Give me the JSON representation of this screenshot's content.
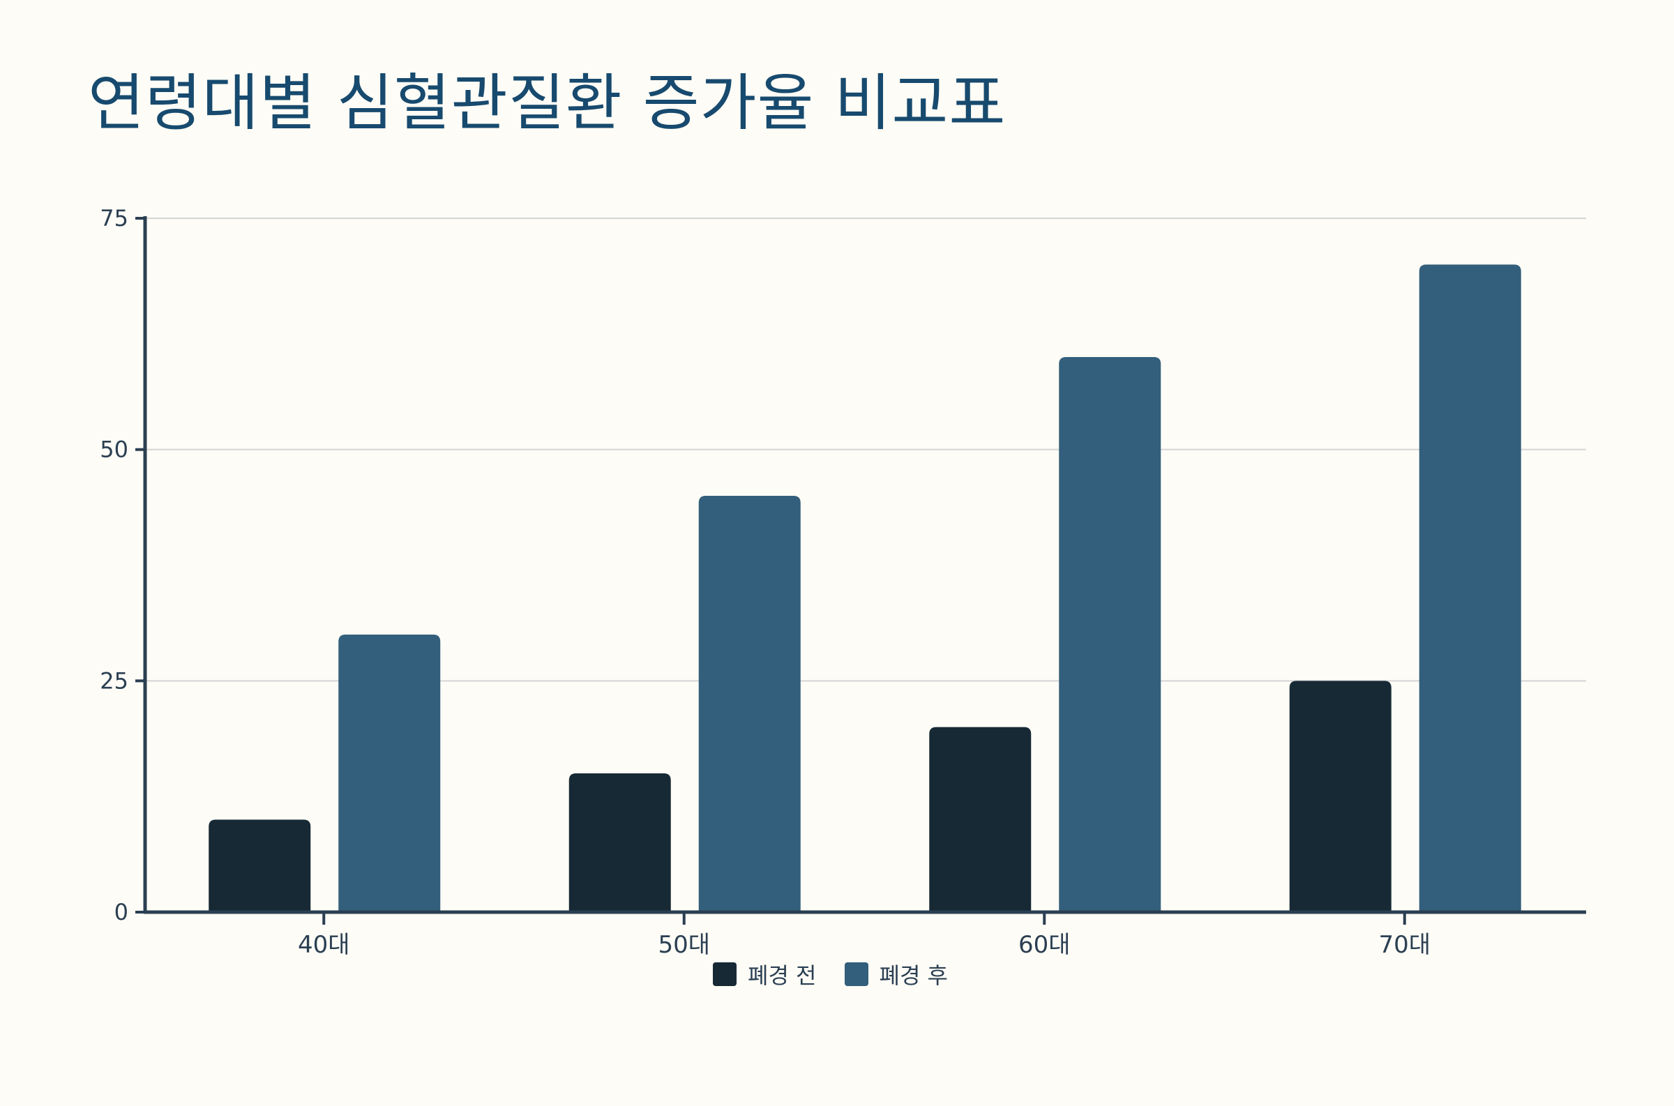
{
  "colors": {
    "background": "#FEFCF6",
    "title": "#174A6E",
    "axis": "#2B3F52",
    "grid": "#D3D6D6",
    "before": "#172935",
    "after": "#335F7C"
  },
  "chart_data": {
    "type": "bar",
    "title": "연령대별 심혈관질환 증가율 비교표",
    "xlabel": "",
    "ylabel": "",
    "categories": [
      "40대",
      "50대",
      "60대",
      "70대"
    ],
    "series": [
      {
        "name": "폐경 전",
        "values": [
          10,
          15,
          20,
          25
        ]
      },
      {
        "name": "폐경 후",
        "values": [
          30,
          45,
          60,
          70
        ]
      }
    ],
    "ylim": [
      0,
      75
    ],
    "yticks": [
      0,
      25,
      50,
      75
    ],
    "grid": true,
    "legend_position": "bottom-center"
  }
}
